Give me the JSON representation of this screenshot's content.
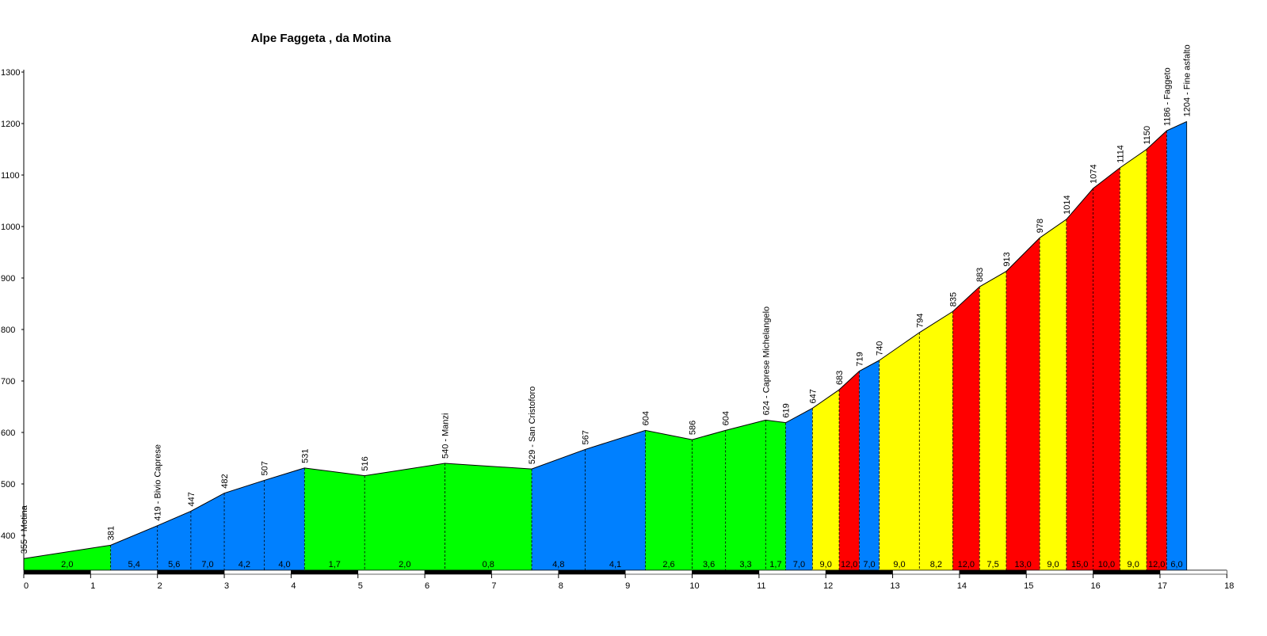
{
  "chart_data": {
    "type": "area",
    "title": "Alpe Faggeta , da Motina",
    "xlabel": "",
    "ylabel": "",
    "xlim": [
      0,
      18
    ],
    "ylim": [
      335,
      1300
    ],
    "y_ticks": [
      400,
      500,
      600,
      700,
      800,
      900,
      1000,
      1100,
      1200,
      1300
    ],
    "x_ticks": [
      0,
      1,
      2,
      3,
      4,
      5,
      6,
      7,
      8,
      9,
      10,
      11,
      12,
      13,
      14,
      15,
      16,
      17,
      18
    ],
    "colors": {
      "green": "#00ff00",
      "blue": "#0080ff",
      "yellow": "#ffff00",
      "red": "#ff0000"
    },
    "points": [
      {
        "km": 0.0,
        "alt": 355,
        "label": "355 - Motina"
      },
      {
        "km": 1.3,
        "alt": 381,
        "label": "381"
      },
      {
        "km": 2.0,
        "alt": 419,
        "label": "419 - Bivio Caprese"
      },
      {
        "km": 2.5,
        "alt": 447,
        "label": "447"
      },
      {
        "km": 3.0,
        "alt": 482,
        "label": "482"
      },
      {
        "km": 3.6,
        "alt": 507,
        "label": "507"
      },
      {
        "km": 4.2,
        "alt": 531,
        "label": "531"
      },
      {
        "km": 5.1,
        "alt": 516,
        "label": "516"
      },
      {
        "km": 6.3,
        "alt": 540,
        "label": "540 - Manzi"
      },
      {
        "km": 7.6,
        "alt": 529,
        "label": "529 - San Cristoforo"
      },
      {
        "km": 8.4,
        "alt": 567,
        "label": "567"
      },
      {
        "km": 9.3,
        "alt": 604,
        "label": "604"
      },
      {
        "km": 10.0,
        "alt": 586,
        "label": "586"
      },
      {
        "km": 10.5,
        "alt": 604,
        "label": "604"
      },
      {
        "km": 11.1,
        "alt": 624,
        "label": "624 - Caprese Michelangelo"
      },
      {
        "km": 11.4,
        "alt": 619,
        "label": "619"
      },
      {
        "km": 11.8,
        "alt": 647,
        "label": "647"
      },
      {
        "km": 12.2,
        "alt": 683,
        "label": "683"
      },
      {
        "km": 12.5,
        "alt": 719,
        "label": "719"
      },
      {
        "km": 12.8,
        "alt": 740,
        "label": "740"
      },
      {
        "km": 13.4,
        "alt": 794,
        "label": "794"
      },
      {
        "km": 13.9,
        "alt": 835,
        "label": "835"
      },
      {
        "km": 14.3,
        "alt": 883,
        "label": "883"
      },
      {
        "km": 14.7,
        "alt": 913,
        "label": "913"
      },
      {
        "km": 15.2,
        "alt": 978,
        "label": "978"
      },
      {
        "km": 15.6,
        "alt": 1014,
        "label": "1014"
      },
      {
        "km": 16.0,
        "alt": 1074,
        "label": "1074"
      },
      {
        "km": 16.4,
        "alt": 1114,
        "label": "1114"
      },
      {
        "km": 16.8,
        "alt": 1150,
        "label": "1150"
      },
      {
        "km": 17.1,
        "alt": 1186,
        "label": "1186 - Faggeto"
      },
      {
        "km": 17.4,
        "alt": 1204,
        "label": "1204 - Fine asfalto"
      }
    ],
    "segments": [
      {
        "grade": "2,0",
        "color": "green"
      },
      {
        "grade": "5,4",
        "color": "blue"
      },
      {
        "grade": "5,6",
        "color": "blue"
      },
      {
        "grade": "7,0",
        "color": "blue"
      },
      {
        "grade": "4,2",
        "color": "blue"
      },
      {
        "grade": "4,0",
        "color": "blue"
      },
      {
        "grade": "1,7",
        "color": "green"
      },
      {
        "grade": "2,0",
        "color": "green"
      },
      {
        "grade": "0,8",
        "color": "green"
      },
      {
        "grade": "4,8",
        "color": "blue"
      },
      {
        "grade": "4,1",
        "color": "blue"
      },
      {
        "grade": "2,6",
        "color": "green"
      },
      {
        "grade": "3,6",
        "color": "green"
      },
      {
        "grade": "3,3",
        "color": "green"
      },
      {
        "grade": "1,7",
        "color": "green"
      },
      {
        "grade": "7,0",
        "color": "blue"
      },
      {
        "grade": "9,0",
        "color": "yellow"
      },
      {
        "grade": "12,0",
        "color": "red"
      },
      {
        "grade": "7,0",
        "color": "blue"
      },
      {
        "grade": "9,0",
        "color": "yellow"
      },
      {
        "grade": "8,2",
        "color": "yellow"
      },
      {
        "grade": "12,0",
        "color": "red"
      },
      {
        "grade": "7,5",
        "color": "yellow"
      },
      {
        "grade": "13,0",
        "color": "red"
      },
      {
        "grade": "9,0",
        "color": "yellow"
      },
      {
        "grade": "15,0",
        "color": "red"
      },
      {
        "grade": "10,0",
        "color": "red"
      },
      {
        "grade": "9,0",
        "color": "yellow"
      },
      {
        "grade": "12,0",
        "color": "red"
      },
      {
        "grade": "6,0",
        "color": "blue"
      }
    ]
  }
}
